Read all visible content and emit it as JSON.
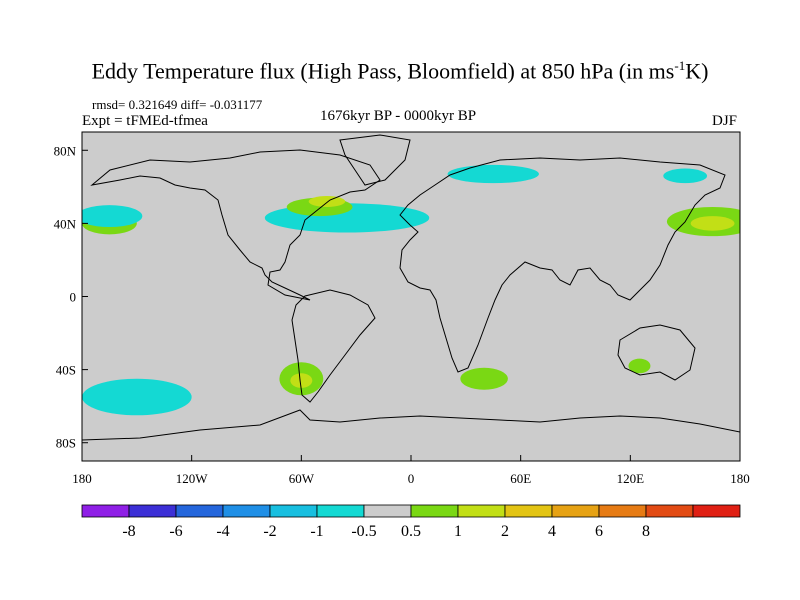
{
  "title": {
    "main": "Eddy Temperature flux (High Pass, Bloomfield) at 850 hPa (in ms",
    "sup": "-1",
    "end": "K)"
  },
  "stats": "rmsd= 0.321649 diff= -0.031177",
  "expt": "Expt = tFMEd-tfmea",
  "period": "1676kyr BP - 0000kyr BP",
  "season": "DJF",
  "axes": {
    "lat_labels": [
      {
        "lat": 80,
        "label": "80N"
      },
      {
        "lat": 40,
        "label": "40N"
      },
      {
        "lat": 0,
        "label": "0"
      },
      {
        "lat": -40,
        "label": "40S"
      },
      {
        "lat": -80,
        "label": "80S"
      }
    ],
    "lon_labels": [
      {
        "lon": -180,
        "label": "180"
      },
      {
        "lon": -120,
        "label": "120W"
      },
      {
        "lon": -60,
        "label": "60W"
      },
      {
        "lon": 0,
        "label": "0"
      },
      {
        "lon": 60,
        "label": "60E"
      },
      {
        "lon": 120,
        "label": "120E"
      },
      {
        "lon": 180,
        "label": "180"
      }
    ]
  },
  "colorbar": {
    "colors": [
      "#8f1fe6",
      "#3c2fd6",
      "#2466dc",
      "#1f8fe6",
      "#18bfe0",
      "#14d9d3",
      "#cccccc",
      "#7ad814",
      "#c2df16",
      "#e3c414",
      "#e6a214",
      "#e67b14",
      "#e24b14",
      "#e02014"
    ],
    "labels": [
      "-8",
      "-6",
      "-4",
      "-2",
      "-1",
      "-0.5",
      "0.5",
      "1",
      "2",
      "4",
      "6",
      "8"
    ]
  },
  "map_data": {
    "background_color": "#cccccc",
    "contours": [
      {
        "lon": -35,
        "lat": 43,
        "rx": 45,
        "ry": 8,
        "level": "-1"
      },
      {
        "lon": -50,
        "lat": 49,
        "rx": 18,
        "ry": 5,
        "level": "1"
      },
      {
        "lon": -46,
        "lat": 52,
        "rx": 10,
        "ry": 3,
        "level": "2"
      },
      {
        "lon": 45,
        "lat": 67,
        "rx": 25,
        "ry": 5,
        "level": "-1"
      },
      {
        "lon": 150,
        "lat": 66,
        "rx": 12,
        "ry": 4,
        "level": "-1"
      },
      {
        "lon": 165,
        "lat": 41,
        "rx": 25,
        "ry": 8,
        "level": "1"
      },
      {
        "lon": 165,
        "lat": 40,
        "rx": 12,
        "ry": 4,
        "level": "2"
      },
      {
        "lon": -165,
        "lat": 40,
        "rx": 15,
        "ry": 6,
        "level": "1"
      },
      {
        "lon": -165,
        "lat": 44,
        "rx": 18,
        "ry": 6,
        "level": "-1"
      },
      {
        "lon": -60,
        "lat": -45,
        "rx": 12,
        "ry": 9,
        "level": "1"
      },
      {
        "lon": -60,
        "lat": -46,
        "rx": 6,
        "ry": 4,
        "level": "2"
      },
      {
        "lon": 40,
        "lat": -45,
        "rx": 13,
        "ry": 6,
        "level": "1"
      },
      {
        "lon": 125,
        "lat": -38,
        "rx": 6,
        "ry": 4,
        "level": "1"
      },
      {
        "lon": -150,
        "lat": -55,
        "rx": 30,
        "ry": 10,
        "level": "-1"
      }
    ]
  }
}
